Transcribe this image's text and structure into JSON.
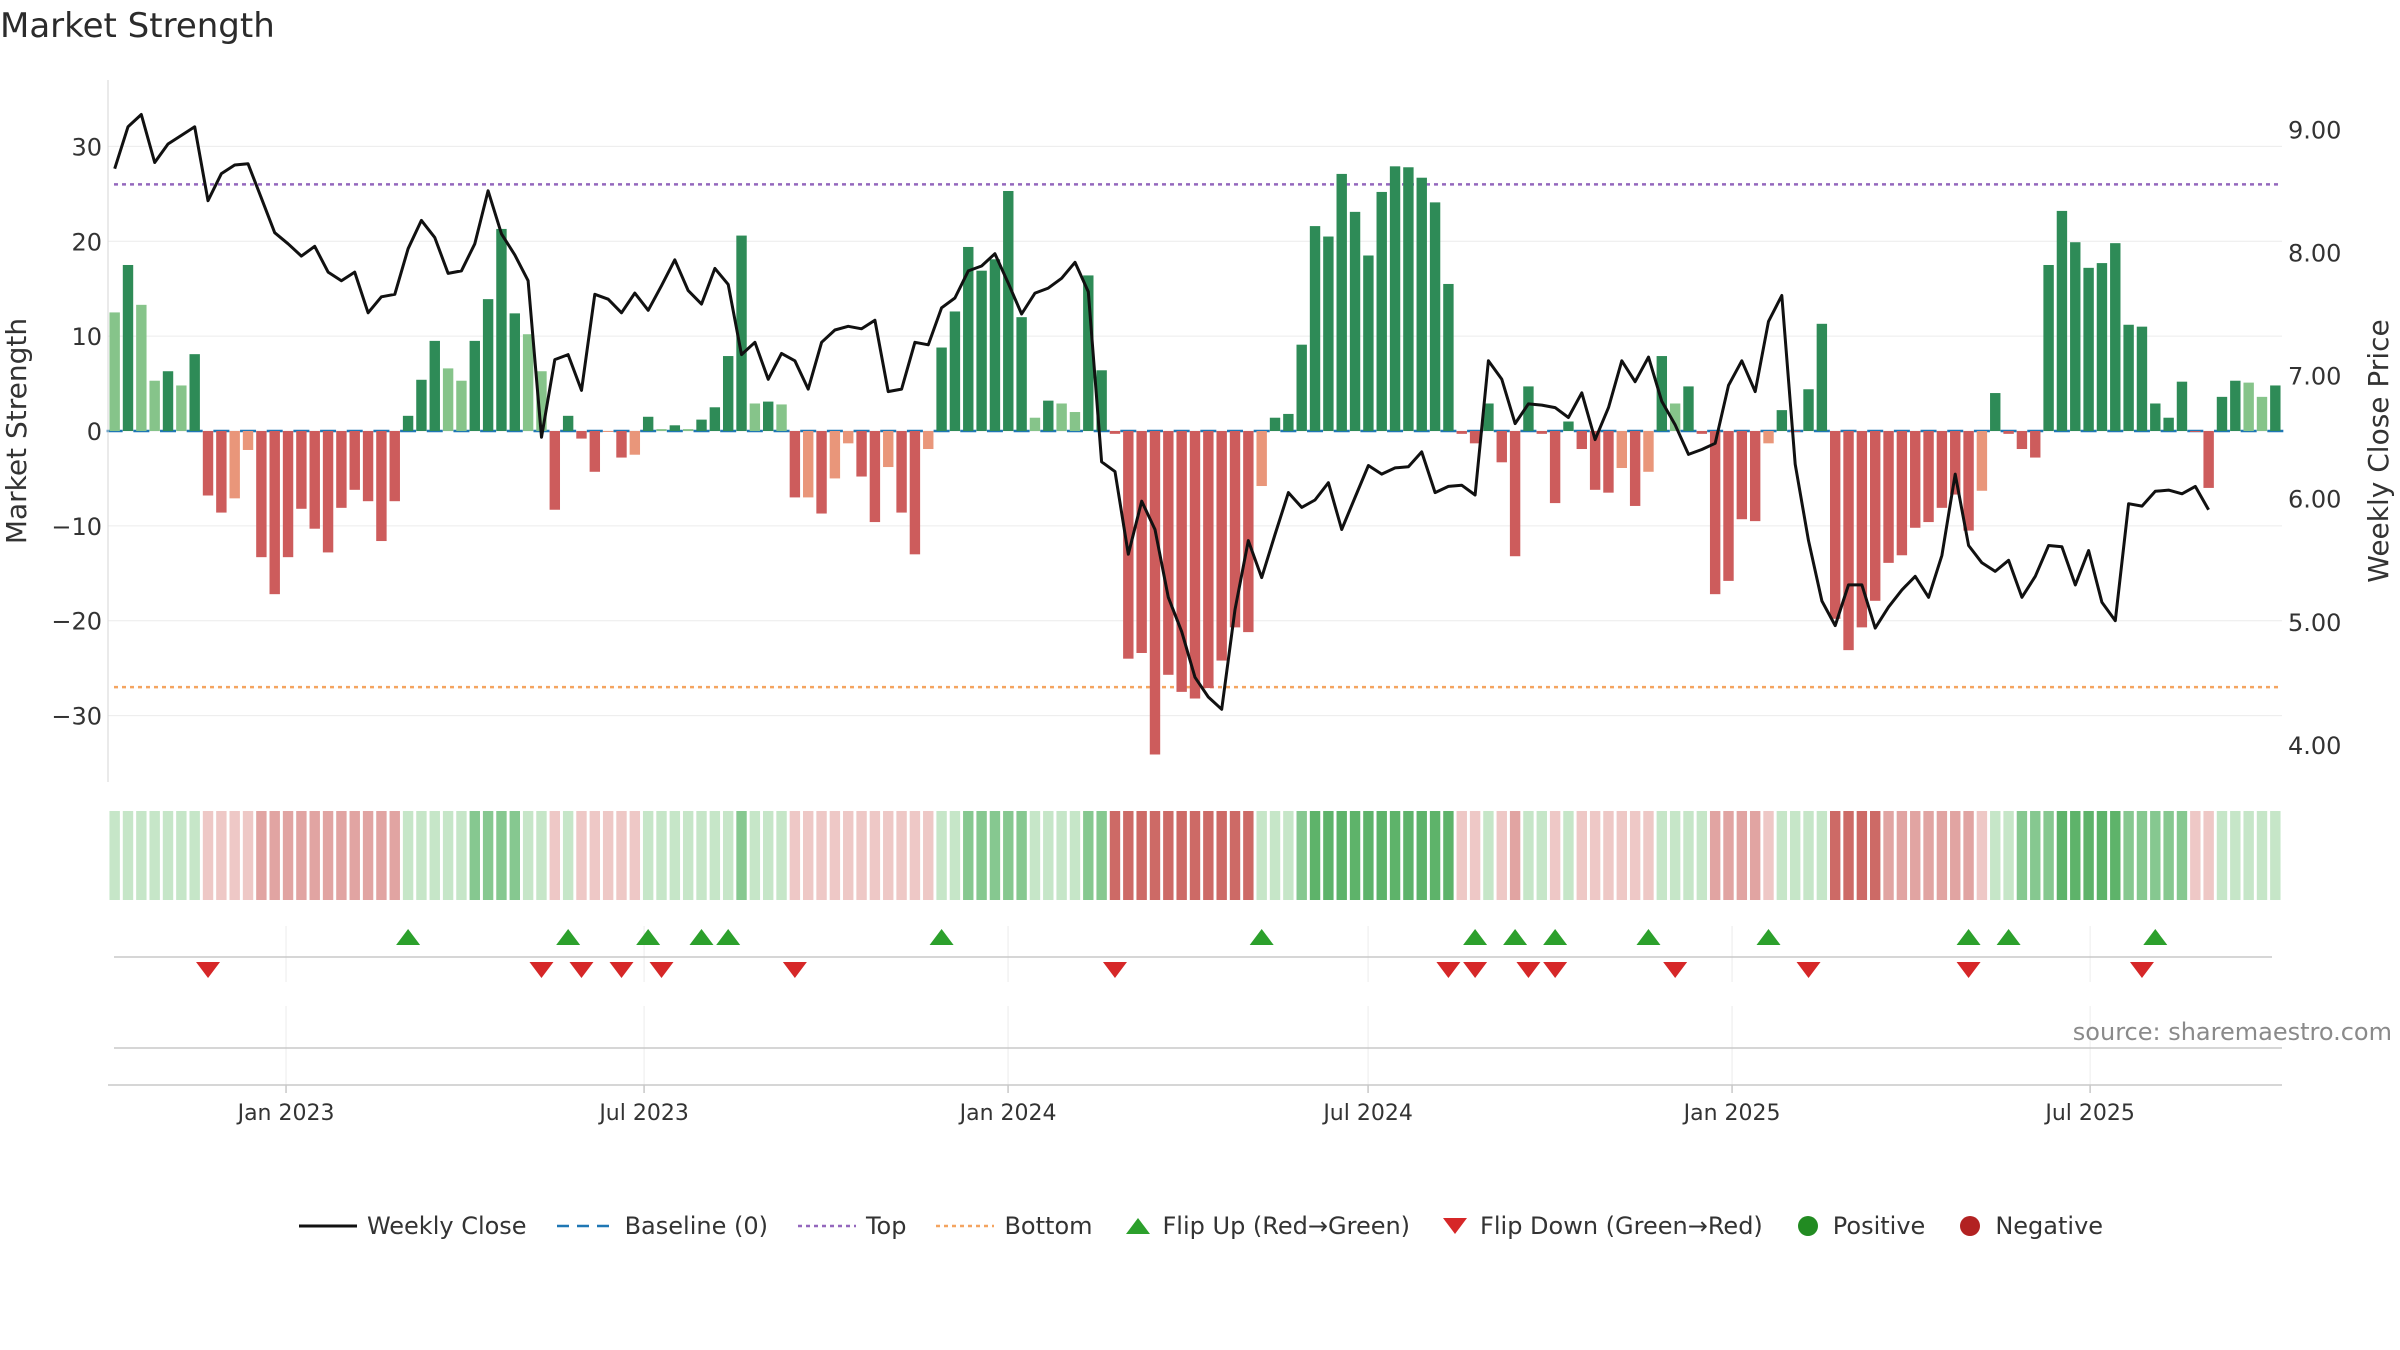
{
  "title": "Market Strength",
  "source": "source: sharemaestro.com",
  "colors": {
    "green_dark": "#2e8b57",
    "green_light": "#86c48a",
    "red_dark": "#cd5c5c",
    "red_light": "#e9967a",
    "close_line": "#111111",
    "baseline": "#1f77b4",
    "top": "#9467bd",
    "bottom": "#f4a460",
    "flip_up": "#2ca02c",
    "flip_down": "#d62728",
    "positive": "#228b22",
    "negative": "#b22222"
  },
  "legend": [
    {
      "label": "Weekly Close",
      "kind": "line"
    },
    {
      "label": "Baseline (0)",
      "kind": "baseline"
    },
    {
      "label": "Top",
      "kind": "top"
    },
    {
      "label": "Bottom",
      "kind": "bottom"
    },
    {
      "label": "Flip Up (Red→Green)",
      "kind": "flip_up"
    },
    {
      "label": "Flip Down (Green→Red)",
      "kind": "flip_down"
    },
    {
      "label": "Positive",
      "kind": "positive"
    },
    {
      "label": "Negative",
      "kind": "negative"
    }
  ],
  "chart_data": {
    "type": "bar",
    "ylabel": "Market Strength",
    "y2label": "Weekly Close Price",
    "ylim": [
      -37,
      37
    ],
    "y2lim": [
      3.7,
      9.4
    ],
    "yticks": [
      "30",
      "20",
      "10",
      "0",
      "−10",
      "−20",
      "−30"
    ],
    "yticks_values": [
      30,
      20,
      10,
      0,
      -10,
      -20,
      -30
    ],
    "y2ticks": [
      "9.00",
      "8.00",
      "7.00",
      "6.00",
      "5.00",
      "4.00"
    ],
    "y2ticks_values": [
      9,
      8,
      7,
      6,
      5,
      4
    ],
    "x_start": "2022-10-03",
    "x_end": "2025-10-06",
    "xticks": [
      "Jan 2023",
      "Jul 2023",
      "Jan 2024",
      "Jul 2024",
      "Jan 2025",
      "Jul 2025"
    ],
    "xticks_dates": [
      "2023-01-01",
      "2023-07-01",
      "2024-01-01",
      "2024-07-01",
      "2025-01-01",
      "2025-07-01"
    ],
    "top_level": 26,
    "bottom_level": -27,
    "baseline": 0,
    "strength": [
      12.5,
      17.5,
      13.3,
      5.3,
      6.3,
      4.8,
      8.1,
      -6.8,
      -8.6,
      -7.1,
      -2.0,
      -13.3,
      -17.2,
      -13.3,
      -8.2,
      -10.3,
      -12.8,
      -8.1,
      -6.2,
      -7.4,
      -11.6,
      -7.4,
      1.6,
      5.4,
      9.5,
      6.6,
      5.3,
      9.5,
      13.9,
      21.3,
      12.4,
      10.2,
      6.3,
      -8.3,
      1.6,
      -0.8,
      -4.3,
      -0.1,
      -2.8,
      -2.5,
      1.5,
      0.2,
      0.6,
      0.2,
      1.2,
      2.5,
      7.9,
      20.6,
      2.9,
      3.1,
      2.8,
      -7.0,
      -7.0,
      -8.7,
      -5.0,
      -1.3,
      -4.8,
      -9.6,
      -3.8,
      -8.6,
      -13.0,
      -1.9,
      8.8,
      12.6,
      19.4,
      16.9,
      18.1,
      25.3,
      12.0,
      1.4,
      3.2,
      2.9,
      2.0,
      16.4,
      6.4,
      -0.3,
      -24.0,
      -23.4,
      -34.1,
      -25.7,
      -27.5,
      -28.2,
      -27.1,
      -24.2,
      -20.7,
      -21.2,
      -5.8,
      1.4,
      1.8,
      9.1,
      21.6,
      20.5,
      27.1,
      23.1,
      18.5,
      25.2,
      27.9,
      27.8,
      26.7,
      24.1,
      15.5,
      -0.3,
      -1.3,
      2.9,
      -3.3,
      -13.2,
      4.7,
      -0.3,
      -7.6,
      1.0,
      -1.9,
      -6.2,
      -6.5,
      -3.9,
      -7.9,
      -4.3,
      7.9,
      2.9,
      4.7,
      -0.3,
      -17.2,
      -15.8,
      -9.3,
      -9.5,
      -1.3,
      2.2,
      -0.1,
      4.4,
      11.3,
      -19.8,
      -23.1,
      -20.7,
      -17.9,
      -13.9,
      -13.1,
      -10.2,
      -9.6,
      -8.1,
      -6.7,
      -10.5,
      -6.3,
      4.0,
      -0.3,
      -1.9,
      -2.8,
      17.5,
      23.2,
      19.9,
      17.2,
      17.7,
      19.8,
      11.2,
      11.0,
      2.9,
      1.4,
      5.2,
      -0.1,
      -6.0,
      3.6,
      5.3,
      5.1,
      3.6,
      4.8
    ],
    "weekly_close": [
      8.68,
      9.02,
      9.12,
      8.73,
      8.88,
      8.95,
      9.02,
      8.42,
      8.64,
      8.71,
      8.72,
      8.44,
      8.16,
      8.07,
      7.97,
      8.05,
      7.84,
      7.77,
      7.84,
      7.51,
      7.64,
      7.66,
      8.03,
      8.26,
      8.12,
      7.83,
      7.85,
      8.07,
      8.5,
      8.15,
      7.98,
      7.77,
      6.5,
      7.13,
      7.17,
      6.88,
      7.66,
      7.62,
      7.51,
      7.67,
      7.53,
      7.73,
      7.94,
      7.69,
      7.58,
      7.87,
      7.74,
      7.17,
      7.27,
      6.97,
      7.18,
      7.12,
      6.89,
      7.27,
      7.37,
      7.4,
      7.38,
      7.45,
      6.87,
      6.89,
      7.27,
      7.25,
      7.55,
      7.63,
      7.85,
      7.89,
      7.99,
      7.75,
      7.5,
      7.67,
      7.71,
      7.79,
      7.92,
      7.68,
      6.3,
      6.22,
      5.55,
      5.98,
      5.75,
      5.2,
      4.92,
      4.55,
      4.39,
      4.29,
      5.1,
      5.66,
      5.36,
      5.71,
      6.05,
      5.93,
      5.99,
      6.13,
      5.75,
      6.01,
      6.27,
      6.2,
      6.25,
      6.26,
      6.38,
      6.05,
      6.1,
      6.11,
      6.03,
      7.12,
      6.97,
      6.61,
      6.77,
      6.76,
      6.74,
      6.66,
      6.86,
      6.48,
      6.74,
      7.12,
      6.95,
      7.15,
      6.79,
      6.6,
      6.36,
      6.4,
      6.45,
      6.92,
      7.12,
      6.87,
      7.44,
      7.65,
      6.28,
      5.66,
      5.17,
      4.97,
      5.3,
      5.3,
      4.95,
      5.12,
      5.26,
      5.37,
      5.2,
      5.54,
      6.2,
      5.62,
      5.48,
      5.41,
      5.5,
      5.2,
      5.37,
      5.62,
      5.61,
      5.3,
      5.58,
      5.16,
      5.01,
      5.96,
      5.94,
      6.06,
      6.07,
      6.04,
      6.1,
      5.91
    ],
    "regime": [
      1,
      1,
      1,
      1,
      1,
      1,
      1,
      -1,
      -1,
      -1,
      -1,
      -2,
      -2,
      -2,
      -2,
      -2,
      -2,
      -2,
      -2,
      -2,
      -2,
      -2,
      1,
      1,
      1,
      1,
      1,
      2,
      2,
      2,
      2,
      1,
      1,
      -1,
      1,
      -1,
      -1,
      -1,
      -1,
      -1,
      1,
      1,
      1,
      1,
      1,
      1,
      1,
      2,
      1,
      1,
      1,
      -1,
      -1,
      -1,
      -1,
      -1,
      -1,
      -1,
      -1,
      -1,
      -1,
      -1,
      1,
      1,
      2,
      2,
      2,
      2,
      2,
      1,
      1,
      1,
      1,
      2,
      2,
      -3,
      -3,
      -3,
      -3,
      -3,
      -3,
      -3,
      -3,
      -3,
      -3,
      -3,
      1,
      1,
      1,
      2,
      3,
      3,
      3,
      3,
      3,
      3,
      3,
      3,
      3,
      3,
      3,
      -1,
      -1,
      1,
      -1,
      -2,
      1,
      1,
      -1,
      1,
      -1,
      -1,
      -1,
      -1,
      -1,
      -1,
      1,
      1,
      1,
      1,
      -2,
      -2,
      -2,
      -2,
      -1,
      1,
      1,
      1,
      1,
      -3,
      -3,
      -3,
      -3,
      -2,
      -2,
      -2,
      -2,
      -2,
      -2,
      -2,
      -1,
      1,
      1,
      2,
      2,
      2,
      3,
      3,
      3,
      3,
      3,
      2,
      2,
      2,
      2,
      2,
      -1,
      -1,
      1,
      1,
      1,
      1,
      1
    ],
    "flip_up_index": [
      22,
      34,
      40,
      44,
      46,
      62,
      86,
      102,
      105,
      108,
      115,
      124,
      139,
      142,
      153
    ],
    "flip_down_index": [
      7,
      32,
      35,
      38,
      41,
      51,
      75,
      100,
      102,
      106,
      108,
      117,
      127,
      139,
      152
    ]
  }
}
